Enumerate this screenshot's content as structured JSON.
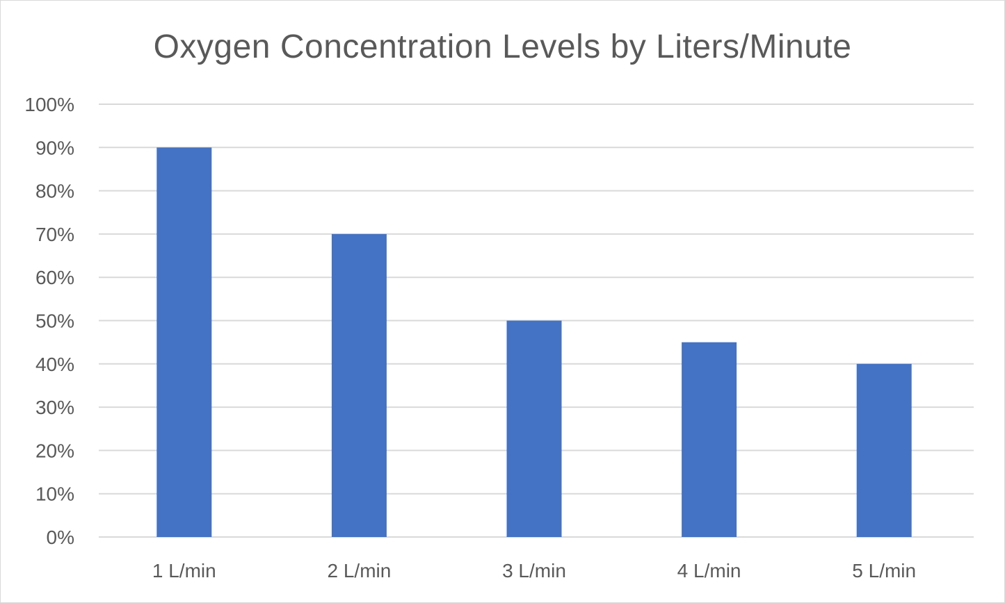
{
  "chart_data": {
    "type": "bar",
    "title": "Oxygen Concentration Levels by Liters/Minute",
    "xlabel": "",
    "ylabel": "",
    "categories": [
      "1 L/min",
      "2 L/min",
      "3 L/min",
      "4 L/min",
      "5 L/min"
    ],
    "values": [
      0.9,
      0.7,
      0.5,
      0.45,
      0.4
    ],
    "ylim": [
      0,
      1.0
    ],
    "y_ticks": [
      0,
      0.1,
      0.2,
      0.3,
      0.4,
      0.5,
      0.6,
      0.7,
      0.8,
      0.9,
      1.0
    ],
    "y_tick_labels": [
      "0%",
      "10%",
      "20%",
      "30%",
      "40%",
      "50%",
      "60%",
      "70%",
      "80%",
      "90%",
      "100%"
    ],
    "grid": true,
    "legend": "none",
    "bar_color": "#4472C4",
    "grid_color": "#d9d9d9"
  }
}
